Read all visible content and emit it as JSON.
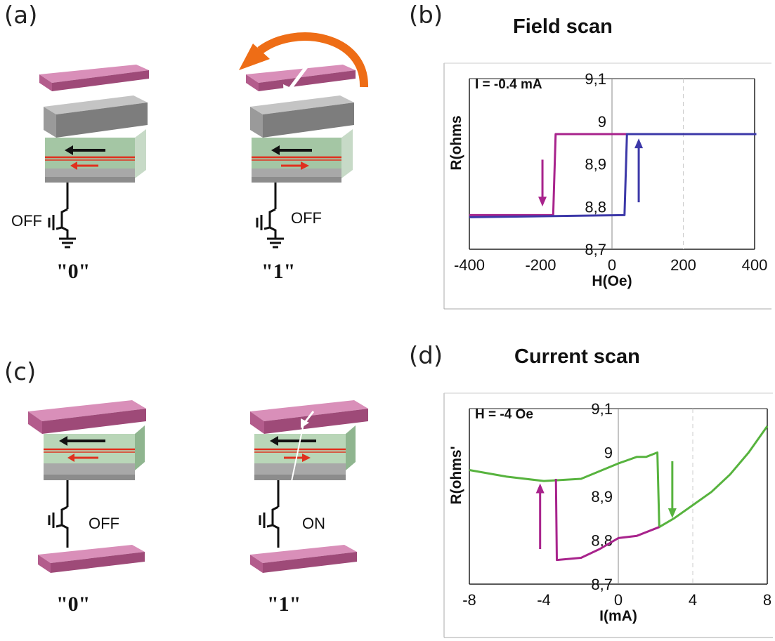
{
  "panels": {
    "a": {
      "label": "(a)",
      "left": {
        "switch_label": "OFF",
        "bit": "\"0\""
      },
      "right": {
        "switch_label": "OFF",
        "bit": "\"1\""
      }
    },
    "b": {
      "label": "(b)"
    },
    "c": {
      "label": "(c)",
      "left": {
        "switch_label": "OFF",
        "bit": "\"0\""
      },
      "right": {
        "switch_label": "ON",
        "bit": "\"1\""
      }
    },
    "d": {
      "label": "(d)"
    }
  },
  "colors": {
    "pink_plate": "#b35c8c",
    "gray_layer": "#9a9a9a",
    "green_layer": "#b9d6b8",
    "red_line": "#e0301e",
    "orange_arrow": "#ee6d16",
    "magenta_curve": "#a8238c",
    "blue_curve": "#3c38a8",
    "green_curve": "#57b33e"
  },
  "chart_data": [
    {
      "type": "line",
      "title": "Field scan",
      "annotation": "I = -0.4 mA",
      "xlabel": "H(Oe)",
      "ylabel": "R(ohms",
      "xlim": [
        -400,
        400
      ],
      "ylim": [
        8.7,
        9.1
      ],
      "xticks": [
        "-400",
        "-200",
        "0",
        "200",
        "400"
      ],
      "yticks": [
        "8,7",
        "8,8",
        "8,9",
        "9",
        "9,1"
      ],
      "series": [
        {
          "color": "#a8238c",
          "points": [
            [
              -400,
              8.78
            ],
            [
              -165,
              8.78
            ],
            [
              -158,
              8.97
            ],
            [
              405,
              8.97
            ]
          ]
        },
        {
          "color": "#3c38a8",
          "points": [
            [
              -400,
              8.775
            ],
            [
              35,
              8.78
            ],
            [
              42,
              8.97
            ],
            [
              405,
              8.97
            ]
          ]
        }
      ],
      "arrows": [
        {
          "direction": "down",
          "x": -195,
          "y_from": 8.91,
          "y_to": 8.81,
          "color": "#a8238c"
        },
        {
          "direction": "up",
          "x": 75,
          "y_from": 8.81,
          "y_to": 8.95,
          "color": "#3c38a8"
        }
      ]
    },
    {
      "type": "line",
      "title": "Current scan",
      "annotation": "H = -4 Oe",
      "xlabel": "I(mA)",
      "ylabel": "R(ohms'",
      "xlim": [
        -8,
        8
      ],
      "ylim": [
        8.7,
        9.1
      ],
      "xticks": [
        "-8",
        "-4",
        "0",
        "4",
        "8"
      ],
      "yticks": [
        "8,7",
        "8,8",
        "8,9",
        "9",
        "9,1"
      ],
      "series": [
        {
          "color": "#57b33e",
          "points": [
            [
              -8,
              8.96
            ],
            [
              -6,
              8.945
            ],
            [
              -4,
              8.935
            ],
            [
              -2,
              8.94
            ],
            [
              0,
              8.975
            ],
            [
              1,
              8.99
            ],
            [
              1.5,
              8.99
            ],
            [
              2.1,
              9.0
            ],
            [
              2.2,
              8.83
            ],
            [
              3,
              8.85
            ],
            [
              4,
              8.88
            ],
            [
              5,
              8.91
            ],
            [
              6,
              8.95
            ],
            [
              7,
              9.0
            ],
            [
              8,
              9.06
            ]
          ]
        },
        {
          "color": "#a8238c",
          "points": [
            [
              -3.35,
              8.94
            ],
            [
              -3.3,
              8.755
            ],
            [
              -2,
              8.76
            ],
            [
              -1,
              8.78
            ],
            [
              0,
              8.805
            ],
            [
              1,
              8.81
            ],
            [
              2.2,
              8.83
            ]
          ]
        }
      ],
      "arrows": [
        {
          "direction": "up",
          "x": -4.2,
          "y_from": 8.78,
          "y_to": 8.92,
          "color": "#a8238c"
        },
        {
          "direction": "down",
          "x": 2.9,
          "y_from": 8.98,
          "y_to": 8.86,
          "color": "#57b33e"
        }
      ]
    }
  ]
}
